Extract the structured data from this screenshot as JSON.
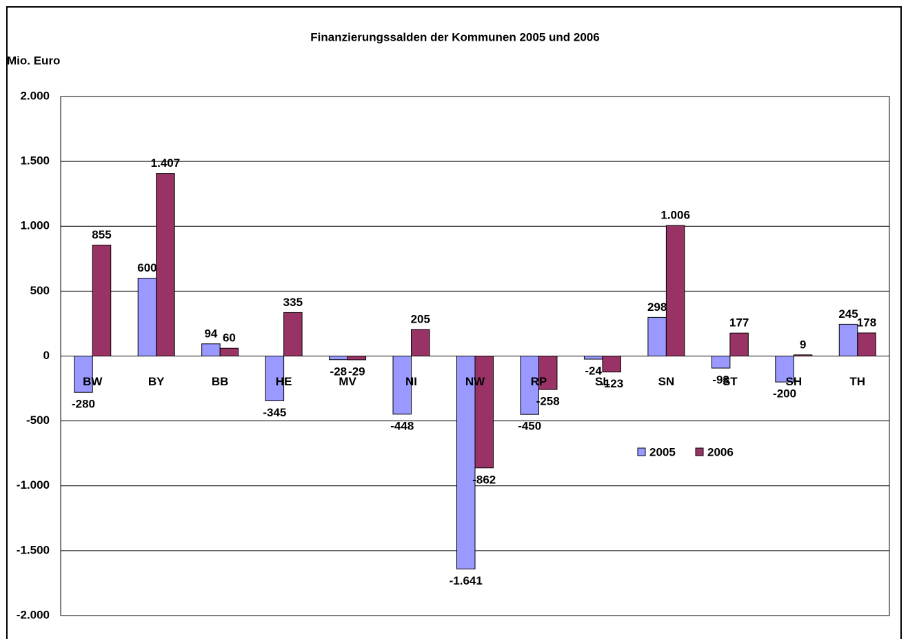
{
  "chart_data": {
    "type": "bar",
    "title": "Finanzierungssalden der Kommunen 2005 und 2006",
    "y_label": "Mio. Euro",
    "categories": [
      "BW",
      "BY",
      "BB",
      "HE",
      "MV",
      "NI",
      "NW",
      "RP",
      "SL",
      "SN",
      "ST",
      "SH",
      "TH"
    ],
    "series": [
      {
        "name": "2005",
        "color": "#9999ff",
        "values": [
          -280,
          600,
          94,
          -345,
          -28,
          -448,
          -1641,
          -450,
          -24,
          298,
          -93,
          -200,
          245
        ],
        "value_labels": [
          "-280",
          "600",
          "94",
          "-345",
          "-28",
          "-448",
          "-1.641",
          "-450",
          "-24",
          "298",
          "-93",
          "-200",
          "245"
        ]
      },
      {
        "name": "2006",
        "color": "#993366",
        "values": [
          855,
          1407,
          60,
          335,
          -29,
          205,
          -862,
          -258,
          -123,
          1006,
          177,
          9,
          178
        ],
        "value_labels": [
          "855",
          "1.407",
          "60",
          "335",
          "-29",
          "205",
          "-862",
          "-258",
          "-123",
          "1.006",
          "177",
          "9",
          "178"
        ]
      }
    ],
    "ylim": [
      -2000,
      2000
    ],
    "yticks": [
      {
        "value": 2000,
        "label": "2.000"
      },
      {
        "value": 1500,
        "label": "1.500"
      },
      {
        "value": 1000,
        "label": "1.000"
      },
      500,
      0,
      -500,
      {
        "value": -1000,
        "label": "-1.000"
      },
      {
        "value": -1500,
        "label": "-1.500"
      },
      {
        "value": -2000,
        "label": "-2.000"
      }
    ],
    "grid": true
  }
}
